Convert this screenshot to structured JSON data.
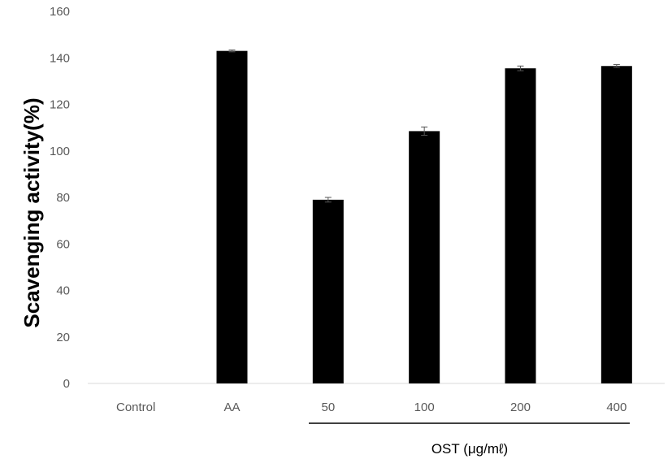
{
  "chart_data": {
    "type": "bar",
    "categories": [
      "Control",
      "AA",
      "50",
      "100",
      "200",
      "400"
    ],
    "series": [
      {
        "values": [
          0,
          143,
          79,
          108.5,
          135.5,
          136.5
        ],
        "error": [
          0,
          0.4,
          1.0,
          1.8,
          1.0,
          0.6
        ]
      }
    ],
    "ylabel": "Scavenging activity(%)",
    "xlabel": "",
    "ylim": [
      0,
      160
    ],
    "yticks": [
      0,
      20,
      40,
      60,
      80,
      100,
      120,
      140,
      160
    ],
    "grid": false,
    "legend": "none",
    "group_label": "OST (μg/mℓ)",
    "bar_color": "#000000",
    "axis_text_color": "#595959"
  }
}
